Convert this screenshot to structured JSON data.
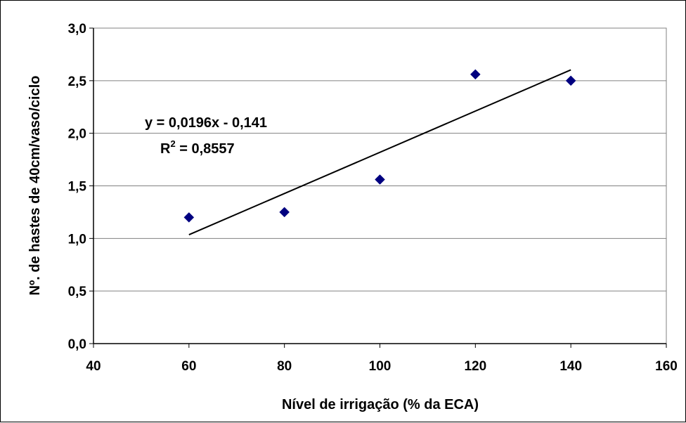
{
  "chart_data": {
    "type": "scatter",
    "xlabel": "Nível de irrigação (% da ECA)",
    "ylabel": "Nº. de hastes de 40cm/vaso/ciclo",
    "xlim": [
      40,
      160
    ],
    "ylim": [
      0,
      3
    ],
    "x_ticks": [
      "40",
      "60",
      "80",
      "100",
      "120",
      "140",
      "160"
    ],
    "y_ticks": [
      "0,0",
      "0,5",
      "1,0",
      "1,5",
      "2,0",
      "2,5",
      "3,0"
    ],
    "grid": "horizontal",
    "series": [
      {
        "marker": "diamond",
        "color": "#000080",
        "points": [
          {
            "x": 60,
            "y": 1.2
          },
          {
            "x": 80,
            "y": 1.25
          },
          {
            "x": 100,
            "y": 1.56
          },
          {
            "x": 120,
            "y": 2.56
          },
          {
            "x": 140,
            "y": 2.5
          }
        ]
      }
    ],
    "trendline": {
      "type": "linear",
      "slope": 0.0196,
      "intercept": -0.141,
      "x_range": [
        60,
        140
      ],
      "equation": "y = 0,0196x - 0,141",
      "r2_label": "R",
      "r2_exp": "2",
      "r2_value": " = 0,8557"
    }
  }
}
